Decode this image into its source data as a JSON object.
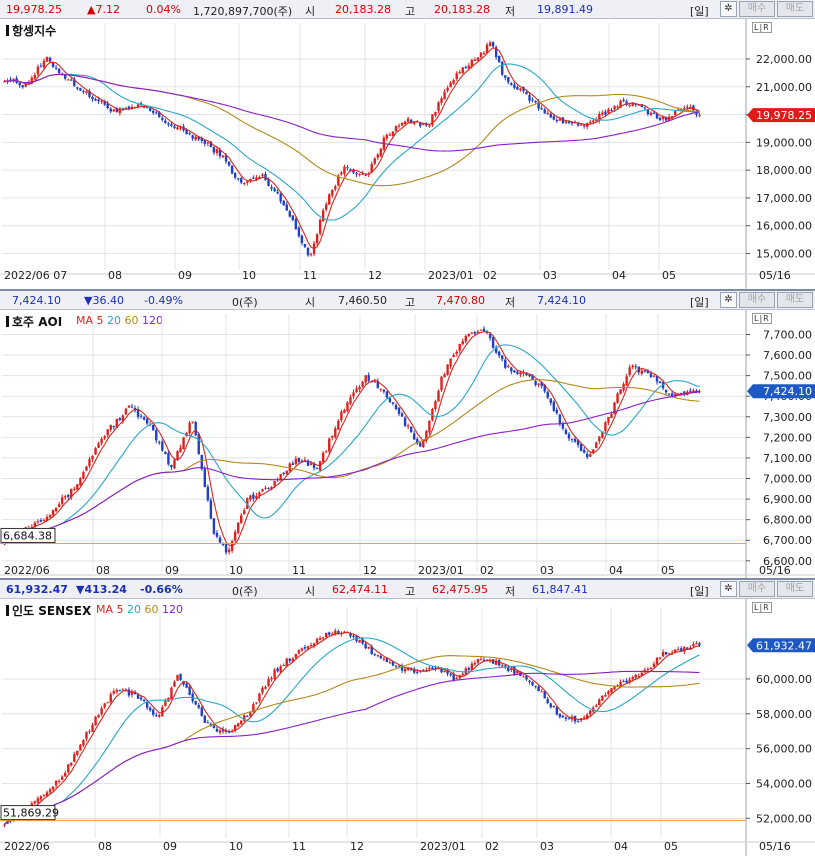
{
  "panels": [
    {
      "id": "hsi",
      "header": {
        "price": "19,978.25",
        "change": "▲7.12",
        "change_pct": "0.04%",
        "volume": "1,720,897,700(주)",
        "open_label": "시",
        "open": "20,183.28",
        "high_label": "고",
        "high": "20,183.28",
        "low_label": "저",
        "low": "19,891.49",
        "direction": "up"
      },
      "title": "항셍지수",
      "ma_legend": null,
      "period_button": "[일]",
      "buy_button": "매수",
      "sell_button": "매도",
      "scale_buttons": "L|R",
      "current_price_tag": "19,978.25",
      "low_marker": null
    },
    {
      "id": "aoi",
      "header": {
        "price": "7,424.10",
        "change": "▼36.40",
        "change_pct": "-0.49%",
        "volume": "0(주)",
        "open_label": "시",
        "open": "7,460.50",
        "high_label": "고",
        "high": "7,470.80",
        "low_label": "저",
        "low": "7,424.10",
        "direction": "down"
      },
      "title": "호주 AOI",
      "ma_legend": {
        "label": "MA",
        "items": [
          "5",
          "20",
          "60",
          "120"
        ]
      },
      "period_button": "[일]",
      "buy_button": "매수",
      "sell_button": "매도",
      "scale_buttons": "L|R",
      "current_price_tag": "7,424.10",
      "low_marker": "6,684.38"
    },
    {
      "id": "sensex",
      "header": {
        "price": "61,932.47",
        "change": "▼413.24",
        "change_pct": "-0.66%",
        "volume": "0(주)",
        "open_label": "시",
        "open": "62,474.11",
        "high_label": "고",
        "high": "62,475.95",
        "low_label": "저",
        "low": "61,847.41",
        "direction": "down"
      },
      "title": "인도 SENSEX",
      "ma_legend": {
        "label": "MA",
        "items": [
          "5",
          "20",
          "60",
          "120"
        ]
      },
      "period_button": "[일]",
      "buy_button": "매수",
      "sell_button": "매도",
      "scale_buttons": "L|R",
      "current_price_tag": "61,932.47",
      "low_marker": "51,869.29"
    }
  ],
  "colors": {
    "up": "#e0201c",
    "down": "#1f3fc4",
    "ma5": "#d7261e",
    "ma20": "#2aa7c9",
    "ma60": "#b58a1a",
    "ma120": "#8a1fc9",
    "tag_up": "#e01919",
    "tag_down": "#1d58c4",
    "lowline": "#f5a040",
    "grid": "#dfe3ea"
  },
  "chart_data": [
    {
      "type": "candlestick",
      "title": "항셍지수",
      "x_labels": [
        "2022/06 07",
        "08",
        "09",
        "10",
        "11",
        "12",
        "2023/01",
        "02",
        "03",
        "04",
        "05",
        "05/16"
      ],
      "yticks": [
        "22,000.00",
        "21,000.00",
        "20,000.00",
        "19,000.00",
        "18,000.00",
        "17,000.00",
        "16,000.00",
        "15,000.00"
      ],
      "ytick_values": [
        22000,
        21000,
        20000,
        19000,
        18000,
        17000,
        16000,
        15000
      ],
      "ylim": [
        14550,
        23150
      ],
      "close_path": [
        [
          0,
          21300
        ],
        [
          0.03,
          21050
        ],
        [
          0.06,
          22000
        ],
        [
          0.09,
          21300
        ],
        [
          0.12,
          20700
        ],
        [
          0.16,
          20100
        ],
        [
          0.2,
          20300
        ],
        [
          0.24,
          19600
        ],
        [
          0.28,
          19100
        ],
        [
          0.31,
          18600
        ],
        [
          0.34,
          17500
        ],
        [
          0.37,
          17800
        ],
        [
          0.4,
          16900
        ],
        [
          0.43,
          15300
        ],
        [
          0.44,
          14900
        ],
        [
          0.46,
          16700
        ],
        [
          0.49,
          18200
        ],
        [
          0.52,
          17700
        ],
        [
          0.55,
          19300
        ],
        [
          0.58,
          19800
        ],
        [
          0.61,
          19600
        ],
        [
          0.64,
          21200
        ],
        [
          0.67,
          21800
        ],
        [
          0.7,
          22550
        ],
        [
          0.72,
          21300
        ],
        [
          0.75,
          20700
        ],
        [
          0.78,
          20000
        ],
        [
          0.81,
          19700
        ],
        [
          0.84,
          19600
        ],
        [
          0.86,
          20000
        ],
        [
          0.89,
          20500
        ],
        [
          0.92,
          20200
        ],
        [
          0.95,
          19800
        ],
        [
          0.98,
          20300
        ],
        [
          1.0,
          19978
        ]
      ]
    },
    {
      "type": "candlestick",
      "title": "호주 AOI",
      "x_labels": [
        "2022/06",
        "08",
        "09",
        "10",
        "11",
        "12",
        "2023/01",
        "02",
        "03",
        "04",
        "05",
        "05/16"
      ],
      "yticks": [
        "7,700.00",
        "7,600.00",
        "7,500.00",
        "7,400.00",
        "7,300.00",
        "7,200.00",
        "7,100.00",
        "7,000.00",
        "6,900.00",
        "6,800.00",
        "6,700.00",
        "6,600.00"
      ],
      "ytick_values": [
        7700,
        7600,
        7500,
        7400,
        7300,
        7200,
        7100,
        7000,
        6900,
        6800,
        6700,
        6600
      ],
      "ylim": [
        6570,
        7780
      ],
      "close_path": [
        [
          0,
          6700
        ],
        [
          0.03,
          6760
        ],
        [
          0.06,
          6820
        ],
        [
          0.1,
          6950
        ],
        [
          0.14,
          7200
        ],
        [
          0.18,
          7350
        ],
        [
          0.21,
          7250
        ],
        [
          0.24,
          7050
        ],
        [
          0.27,
          7300
        ],
        [
          0.3,
          6750
        ],
        [
          0.32,
          6640
        ],
        [
          0.35,
          6900
        ],
        [
          0.38,
          6950
        ],
        [
          0.42,
          7100
        ],
        [
          0.45,
          7050
        ],
        [
          0.49,
          7350
        ],
        [
          0.52,
          7500
        ],
        [
          0.55,
          7400
        ],
        [
          0.58,
          7250
        ],
        [
          0.6,
          7150
        ],
        [
          0.63,
          7500
        ],
        [
          0.66,
          7680
        ],
        [
          0.69,
          7720
        ],
        [
          0.72,
          7550
        ],
        [
          0.75,
          7500
        ],
        [
          0.78,
          7420
        ],
        [
          0.81,
          7200
        ],
        [
          0.84,
          7110
        ],
        [
          0.87,
          7300
        ],
        [
          0.9,
          7550
        ],
        [
          0.93,
          7500
        ],
        [
          0.96,
          7400
        ],
        [
          1.0,
          7424
        ]
      ]
    },
    {
      "type": "candlestick",
      "title": "인도 SENSEX",
      "x_labels": [
        "2022/06",
        "08",
        "09",
        "10",
        "11",
        "12",
        "2023/01",
        "02",
        "03",
        "04",
        "05",
        "05/16"
      ],
      "yticks": [
        "60,000.00",
        "58,000.00",
        "56,000.00",
        "54,000.00",
        "52,000.00"
      ],
      "ytick_values": [
        60000,
        58000,
        56000,
        54000,
        52000
      ],
      "ylim": [
        51100,
        63900
      ],
      "close_path": [
        [
          0,
          51800
        ],
        [
          0.04,
          52800
        ],
        [
          0.08,
          54200
        ],
        [
          0.12,
          57000
        ],
        [
          0.16,
          59500
        ],
        [
          0.19,
          59000
        ],
        [
          0.22,
          57800
        ],
        [
          0.25,
          60200
        ],
        [
          0.29,
          57500
        ],
        [
          0.32,
          56800
        ],
        [
          0.35,
          58000
        ],
        [
          0.39,
          60500
        ],
        [
          0.43,
          61800
        ],
        [
          0.47,
          62700
        ],
        [
          0.5,
          62500
        ],
        [
          0.53,
          61500
        ],
        [
          0.56,
          60800
        ],
        [
          0.59,
          60300
        ],
        [
          0.62,
          60700
        ],
        [
          0.65,
          60000
        ],
        [
          0.68,
          61000
        ],
        [
          0.71,
          60900
        ],
        [
          0.74,
          60300
        ],
        [
          0.77,
          59300
        ],
        [
          0.8,
          57800
        ],
        [
          0.83,
          57600
        ],
        [
          0.86,
          59000
        ],
        [
          0.89,
          59800
        ],
        [
          0.92,
          60400
        ],
        [
          0.95,
          61500
        ],
        [
          1.0,
          61932
        ]
      ]
    }
  ]
}
